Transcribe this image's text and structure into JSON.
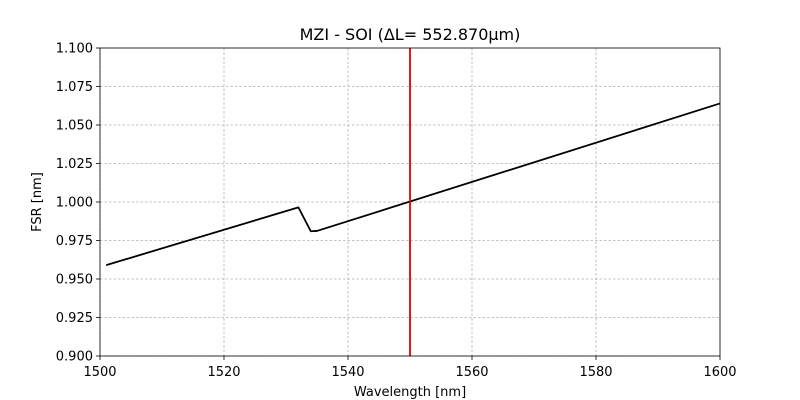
{
  "chart_data": {
    "type": "line",
    "title": "MZI - SOI  (ΔL= 552.870μm)",
    "xlabel": "Wavelength [nm]",
    "ylabel": "FSR [nm]",
    "xlim": [
      1500,
      1600
    ],
    "ylim": [
      0.9,
      1.1
    ],
    "xticks": [
      1500,
      1520,
      1540,
      1560,
      1580,
      1600
    ],
    "xtick_labels": [
      "1500",
      "1520",
      "1540",
      "1560",
      "1580",
      "1600"
    ],
    "yticks": [
      0.9,
      0.925,
      0.95,
      0.975,
      1.0,
      1.025,
      1.05,
      1.075,
      1.1
    ],
    "ytick_labels": [
      "0.900",
      "0.925",
      "0.950",
      "0.975",
      "1.000",
      "1.025",
      "1.050",
      "1.075",
      "1.100"
    ],
    "grid": true,
    "series": [
      {
        "color": "#000000",
        "x": [
          1501,
          1532,
          1534,
          1535,
          1600
        ],
        "y": [
          0.959,
          0.9965,
          0.981,
          0.9812,
          1.064
        ]
      }
    ],
    "vlines": [
      {
        "x": 1550,
        "color": "#e00000"
      }
    ]
  }
}
